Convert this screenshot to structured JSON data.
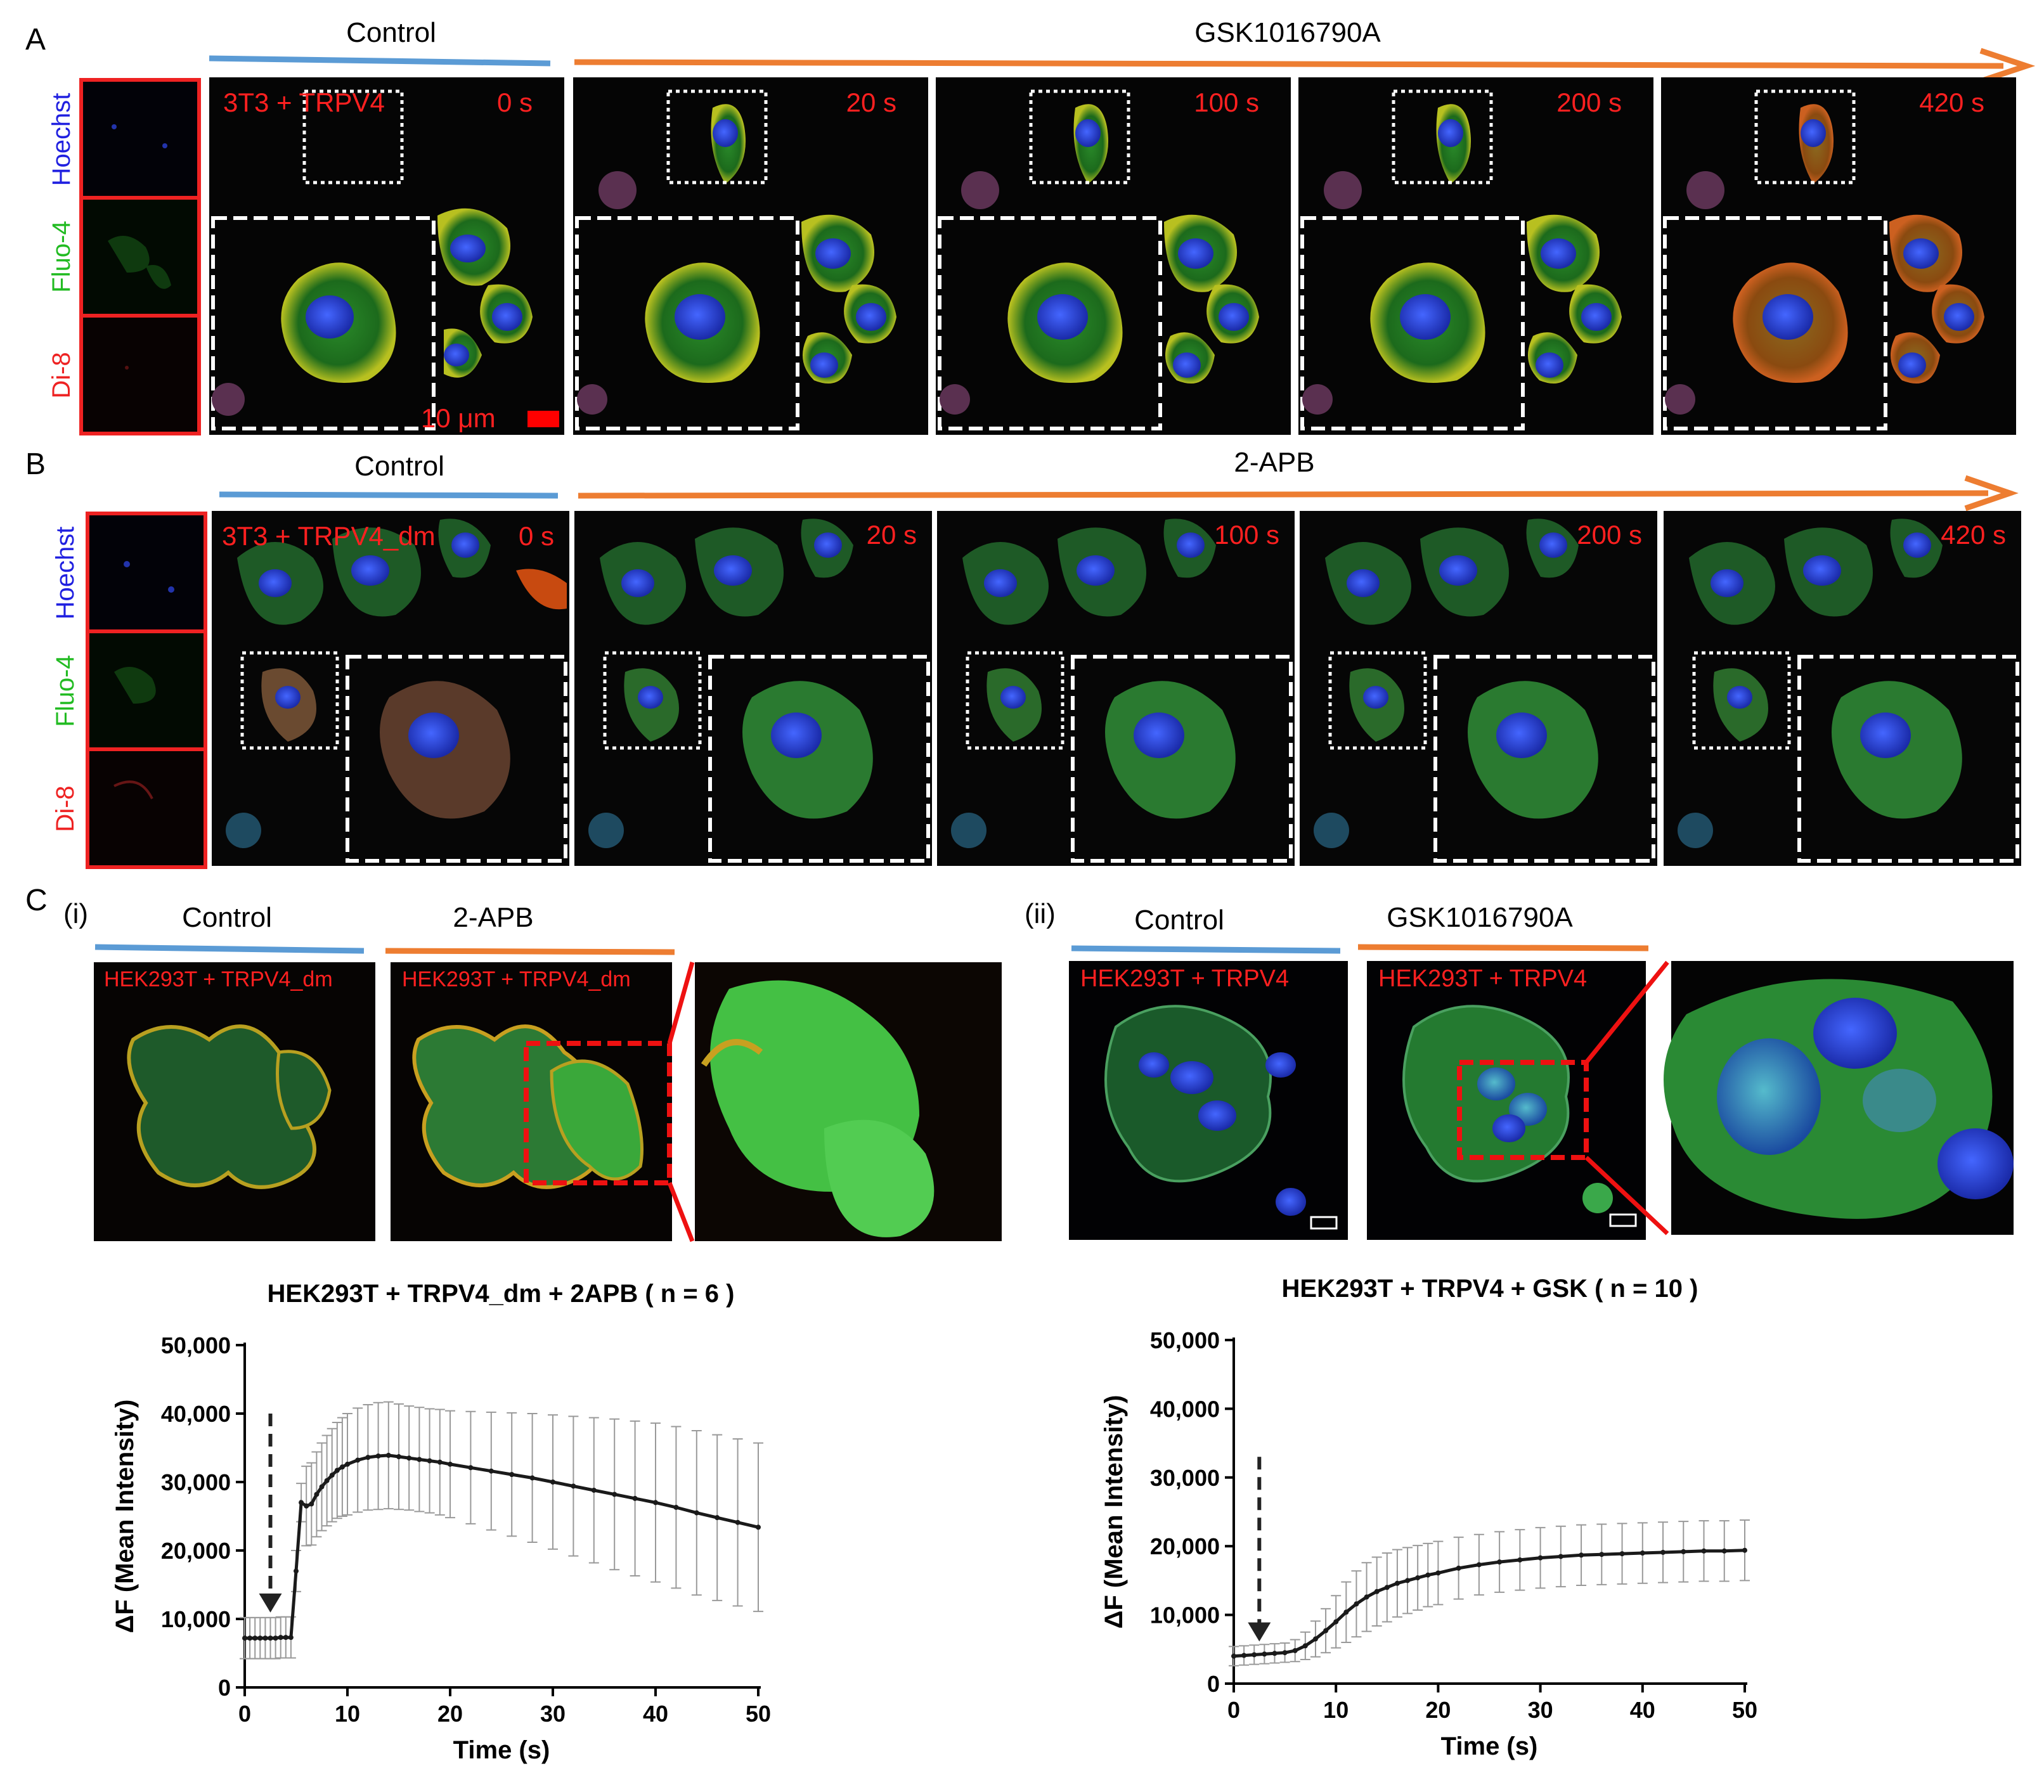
{
  "panelA": {
    "letter": "A",
    "control_label": "Control",
    "treatment_label": "GSK1016790A",
    "channels": [
      "Hoechst",
      "Fluo-4",
      "Di-8"
    ],
    "cell_label": "3T3 + TRPV4",
    "times": [
      "0 s",
      "20 s",
      "100 s",
      "200 s",
      "420 s"
    ],
    "scale_label": "10 μm"
  },
  "panelB": {
    "letter": "B",
    "control_label": "Control",
    "treatment_label": "2-APB",
    "channels": [
      "Hoechst",
      "Fluo-4",
      "Di-8"
    ],
    "cell_label": "3T3 + TRPV4_dm",
    "times": [
      "0 s",
      "20 s",
      "100 s",
      "200 s",
      "420 s"
    ]
  },
  "panelC": {
    "letter": "C",
    "sub_i": "(i)",
    "sub_ii": "(ii)",
    "i_control_label": "Control",
    "i_treatment_label": "2-APB",
    "i_cell_label": "HEK293T + TRPV4_dm",
    "ii_control_label": "Control",
    "ii_treatment_label": "GSK1016790A",
    "ii_cell_label": "HEK293T + TRPV4"
  },
  "colors": {
    "control_bar": "#5b9bd5",
    "treatment_bar": "#ed7d31",
    "channel_blue": "#2020e0",
    "channel_green": "#22bb22",
    "channel_red": "#ee2222",
    "overlay_text": "#ff2020"
  },
  "chart_data": [
    {
      "type": "line",
      "title": "HEK293T + TRPV4_dm + 2APB ( n = 6 )",
      "xlabel": "Time (s)",
      "ylabel": "ΔF (Mean Intensity)",
      "xlim": [
        0,
        50
      ],
      "ylim": [
        0,
        50000
      ],
      "xticks": [
        "0",
        "10",
        "20",
        "30",
        "40",
        "50"
      ],
      "yticks": [
        "0",
        "10,000",
        "20,000",
        "30,000",
        "40,000",
        "50,000"
      ],
      "arrow_x": 2.5,
      "x": [
        0,
        0.5,
        1,
        1.5,
        2,
        2.5,
        3,
        3.5,
        4,
        4.5,
        5,
        5.5,
        6,
        6.5,
        7,
        7.5,
        8,
        8.5,
        9,
        9.5,
        10,
        11,
        12,
        13,
        14,
        15,
        16,
        17,
        18,
        19,
        20,
        22,
        24,
        26,
        28,
        30,
        32,
        34,
        36,
        38,
        40,
        42,
        44,
        46,
        48,
        50
      ],
      "y": [
        7200,
        7200,
        7200,
        7200,
        7200,
        7200,
        7200,
        7300,
        7300,
        7300,
        17000,
        27000,
        26500,
        26800,
        28200,
        29300,
        30200,
        31000,
        31700,
        32200,
        32600,
        33200,
        33600,
        33800,
        33900,
        33700,
        33500,
        33300,
        33100,
        32900,
        32600,
        32100,
        31600,
        31100,
        30600,
        30000,
        29400,
        28800,
        28200,
        27600,
        27000,
        26300,
        25500,
        24800,
        24100,
        23400
      ],
      "err": [
        3000,
        3000,
        3000,
        3000,
        3000,
        3000,
        3000,
        3000,
        3000,
        3000,
        3000,
        2800,
        5800,
        6000,
        6200,
        6400,
        6600,
        6800,
        7000,
        7200,
        7400,
        7600,
        7700,
        7800,
        7800,
        7700,
        7600,
        7600,
        7600,
        7700,
        7800,
        8200,
        8600,
        9000,
        9400,
        9800,
        10200,
        10600,
        11000,
        11300,
        11600,
        11800,
        12000,
        12100,
        12200,
        12300
      ]
    },
    {
      "type": "line",
      "title": "HEK293T + TRPV4 + GSK ( n = 10 )",
      "xlabel": "Time (s)",
      "ylabel": "ΔF (Mean Intensity)",
      "xlim": [
        0,
        50
      ],
      "ylim": [
        0,
        50000
      ],
      "xticks": [
        "0",
        "10",
        "20",
        "30",
        "40",
        "50"
      ],
      "yticks": [
        "0",
        "10,000",
        "20,000",
        "30,000",
        "40,000",
        "50,000"
      ],
      "arrow_x": 2.5,
      "x": [
        0,
        1,
        2,
        3,
        4,
        5,
        6,
        7,
        8,
        9,
        10,
        11,
        12,
        13,
        14,
        15,
        16,
        17,
        18,
        19,
        20,
        22,
        24,
        26,
        28,
        30,
        32,
        34,
        36,
        38,
        40,
        42,
        44,
        46,
        48,
        50
      ],
      "y": [
        4000,
        4100,
        4200,
        4300,
        4400,
        4500,
        4800,
        5500,
        6500,
        7700,
        9000,
        10400,
        11600,
        12600,
        13400,
        14000,
        14600,
        15000,
        15400,
        15800,
        16100,
        16800,
        17300,
        17700,
        18000,
        18300,
        18500,
        18700,
        18800,
        18900,
        19000,
        19100,
        19200,
        19300,
        19300,
        19400
      ],
      "err": [
        1400,
        1400,
        1400,
        1400,
        1400,
        1400,
        1600,
        2000,
        2600,
        3200,
        3800,
        4400,
        4800,
        5000,
        5000,
        5000,
        4900,
        4800,
        4700,
        4600,
        4600,
        4500,
        4400,
        4400,
        4400,
        4400,
        4400,
        4400,
        4400,
        4400,
        4400,
        4400,
        4400,
        4400,
        4400,
        4400
      ]
    }
  ]
}
